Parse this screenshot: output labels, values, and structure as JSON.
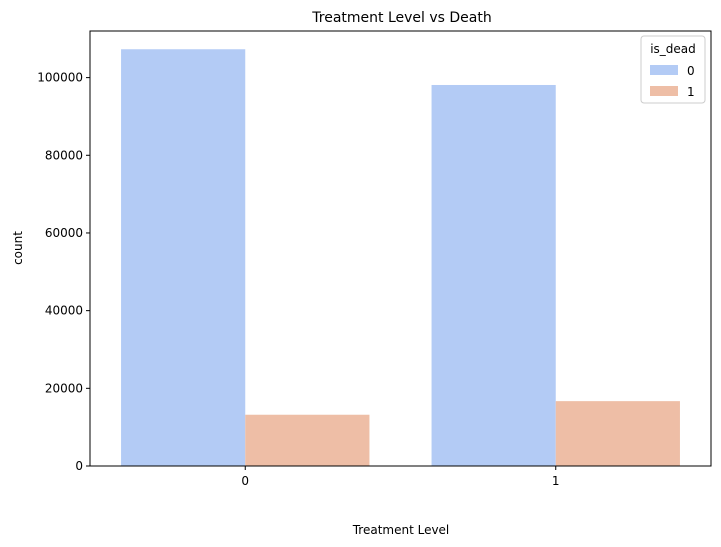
{
  "chart_data": {
    "type": "bar",
    "title": "Treatment Level vs Death",
    "xlabel": "Treatment Level",
    "ylabel": "count",
    "categories": [
      "0",
      "1"
    ],
    "series": [
      {
        "name": "0",
        "values": [
          107300,
          98100
        ],
        "color": "#b3cbf5"
      },
      {
        "name": "1",
        "values": [
          13200,
          16700
        ],
        "color": "#eebea6"
      }
    ],
    "ylim": [
      0,
      112000
    ],
    "yticks": [
      0,
      20000,
      40000,
      60000,
      80000,
      100000
    ],
    "legend": {
      "title": "is_dead",
      "placement": "top-right"
    },
    "grid": false
  }
}
